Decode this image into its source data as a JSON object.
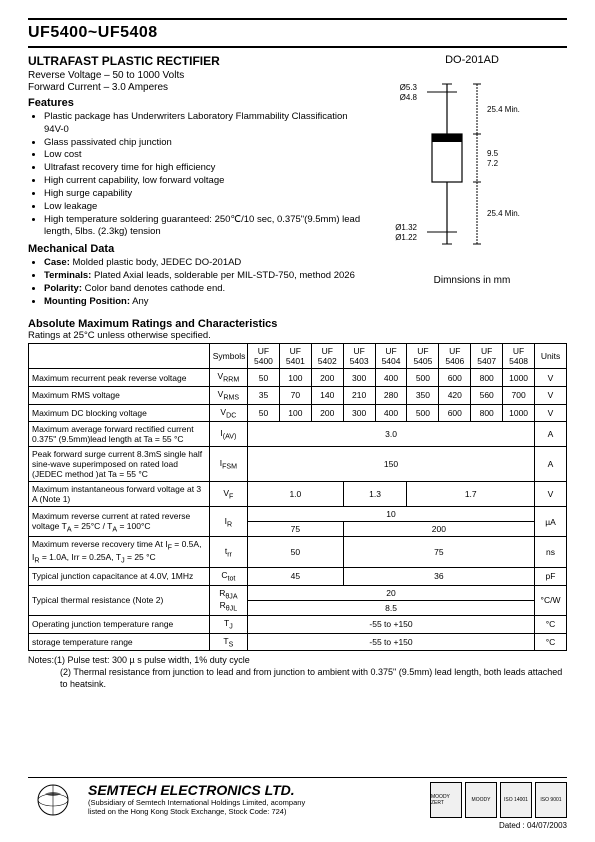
{
  "header": {
    "part_range": "UF5400~UF5408"
  },
  "product": {
    "title": "ULTRAFAST PLASTIC RECTIFIER",
    "spec1": "Reverse Voltage – 50 to 1000 Volts",
    "spec2": "Forward Current – 3.0 Amperes"
  },
  "package": {
    "label": "DO-201AD",
    "dim_note": "Dimnsions in mm",
    "dims": {
      "lead_dia_top": "Ø5.3",
      "lead_dia_top2": "Ø4.8",
      "lead_len": "25.4 Min.",
      "body_h1": "9.5",
      "body_h2": "7.2",
      "lead_dia_bot": "Ø1.32",
      "lead_dia_bot2": "Ø1.22",
      "lead_len2": "25.4 Min."
    }
  },
  "features": {
    "head": "Features",
    "items": [
      "Plastic package has Underwriters Laboratory Flammability Classification 94V-0",
      "Glass passivated chip junction",
      "Low cost",
      "Ultrafast recovery time for high efficiency",
      "High current capability, low forward voltage",
      "High surge capability",
      "Low leakage",
      "High temperature soldering guaranteed: 250℃/10 sec, 0.375\"(9.5mm) lead length, 5lbs. (2.3kg) tension"
    ]
  },
  "mech": {
    "head": "Mechanical Data",
    "items": [
      "<b>Case:</b> Molded plastic body, JEDEC DO-201AD",
      "<b>Terminals:</b> Plated Axial leads, solderable per MIL-STD-750, method 2026",
      "<b>Polarity:</b> Color band denotes cathode end.",
      "<b>Mounting Position:</b> Any"
    ]
  },
  "ratings": {
    "title": "Absolute Maximum Ratings and Characteristics",
    "cond": "Ratings at 25°C unless otherwise specified.",
    "cols": {
      "sym": "Symbols",
      "units": "Units"
    },
    "parts": [
      "UF 5400",
      "UF 5401",
      "UF 5402",
      "UF 5403",
      "UF 5404",
      "UF 5405",
      "UF 5406",
      "UF 5407",
      "UF 5408"
    ],
    "rows": [
      {
        "desc": "Maximum recurrent peak reverse voltage",
        "sym": "V<sub>RRM</sub>",
        "vals": [
          "50",
          "100",
          "200",
          "300",
          "400",
          "500",
          "600",
          "800",
          "1000"
        ],
        "unit": "V"
      },
      {
        "desc": "Maximum RMS voltage",
        "sym": "V<sub>RMS</sub>",
        "vals": [
          "35",
          "70",
          "140",
          "210",
          "280",
          "350",
          "420",
          "560",
          "700"
        ],
        "unit": "V"
      },
      {
        "desc": "Maximum DC blocking voltage",
        "sym": "V<sub>DC</sub>",
        "vals": [
          "50",
          "100",
          "200",
          "300",
          "400",
          "500",
          "600",
          "800",
          "1000"
        ],
        "unit": "V"
      },
      {
        "desc": "Maximum average forward rectified current 0.375\" (9.5mm)lead length at Ta = 55 °C",
        "sym": "I<sub>(AV)</sub>",
        "span": "3.0",
        "unit": "A"
      },
      {
        "desc": "Peak forward surge current 8.3mS single half sine-wave superimposed on rated load (JEDEC method )at Ta = 55 °C",
        "sym": "I<sub>FSM</sub>",
        "span": "150",
        "unit": "A"
      },
      {
        "desc": "Maximum instantaneous forward voltage at 3 A (Note 1)",
        "sym": "V<sub>F</sub>",
        "groups": [
          {
            "span": 3,
            "val": "1.0"
          },
          {
            "span": 2,
            "val": "1.3"
          },
          {
            "span": 4,
            "val": "1.7"
          }
        ],
        "unit": "V"
      },
      {
        "desc": "Maximum reverse current at rated reverse voltage T<sub>A</sub> = 25°C / T<sub>A</sub> = 100°C",
        "sym": "I<sub>R</sub>",
        "two_rows": [
          {
            "span": 9,
            "val": "10"
          },
          [
            {
              "span": 3,
              "val": "75"
            },
            {
              "span": 6,
              "val": "200"
            }
          ]
        ],
        "unit": "µA"
      },
      {
        "desc": "Maximum reverse recovery time At I<sub>F</sub> = 0.5A, I<sub>R</sub> = 1.0A, Irr = 0.25A, T<sub>J</sub> = 25 °C",
        "sym": "t<sub>rr</sub>",
        "groups": [
          {
            "span": 3,
            "val": "50"
          },
          {
            "span": 6,
            "val": "75"
          }
        ],
        "unit": "ns"
      },
      {
        "desc": "Typical junction capacitance at 4.0V, 1MHz",
        "sym": "C<sub>tot</sub>",
        "groups": [
          {
            "span": 3,
            "val": "45"
          },
          {
            "span": 6,
            "val": "36"
          }
        ],
        "unit": "pF"
      },
      {
        "desc": "Typical thermal resistance (Note 2)",
        "sym": "R<sub>θJA</sub><br>R<sub>θJL</sub>",
        "stack": [
          "20",
          "8.5"
        ],
        "unit": "°C/W"
      },
      {
        "desc": "Operating junction temperature range",
        "sym": "T<sub>J</sub>",
        "span": "-55 to +150",
        "unit": "°C"
      },
      {
        "desc": "storage temperature range",
        "sym": "T<sub>S</sub>",
        "span": "-55 to +150",
        "unit": "°C"
      }
    ]
  },
  "notes": {
    "n1": "Notes:(1) Pulse test: 300 µ s pulse width, 1% duty cycle",
    "n2": "(2) Thermal resistance from junction to lead and from junction to ambient with 0.375\" (9.5mm) lead length, both leads attached to heatsink."
  },
  "footer": {
    "company": "SEMTECH ELECTRONICS LTD.",
    "sub1": "(Subsidiary of Semtech International Holdings Limited, acompany",
    "sub2": "listed on the Hong Kong Stock Exchange, Stock Code: 724)",
    "certs": [
      "MOODY ZERT",
      "MOODY",
      "ISO 14001",
      "ISO 9001"
    ],
    "date": "Dated : 04/07/2003"
  }
}
